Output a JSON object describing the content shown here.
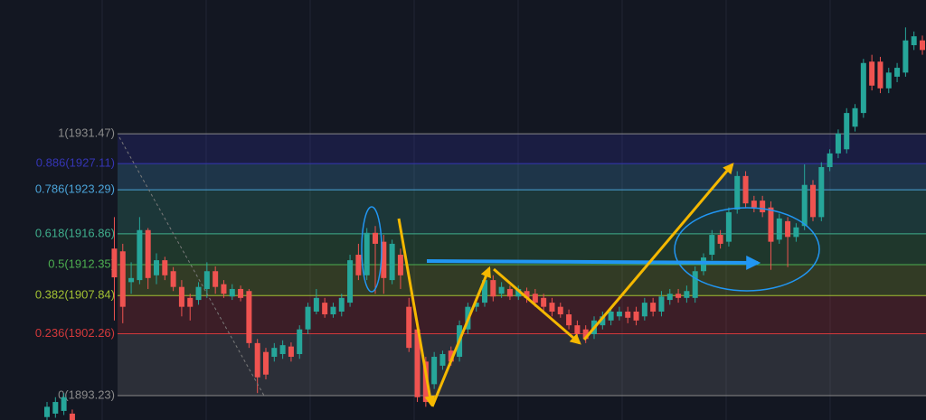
{
  "chart_data": {
    "type": "candlestick",
    "ylim": [
      1889.67,
      1951.0
    ],
    "up_color": "#26a69a",
    "down_color": "#ef5350",
    "fib_levels": [
      {
        "value": 1931.47,
        "label": "1(1931.47)"
      },
      {
        "value": 1927.11,
        "label": "0.886(1927.11)"
      },
      {
        "value": 1923.29,
        "label": "0.786(1923.29)"
      },
      {
        "value": 1916.86,
        "label": "0.618(1916.86)"
      },
      {
        "value": 1912.35,
        "label": "0.5(1912.35)"
      },
      {
        "value": 1907.84,
        "label": "0.382(1907.84)"
      },
      {
        "value": 1902.26,
        "label": "0.236(1902.26)"
      },
      {
        "value": 1893.23,
        "label": "0(1893.23)"
      }
    ],
    "fib_colors": [
      "#8a8a8a",
      "#3535b5",
      "#4aa3d8",
      "#3fae8c",
      "#4caf50",
      "#a2c132",
      "#d3393b",
      "#8a8a8a"
    ],
    "open": [
      1890.1,
      1890.6,
      1891.0,
      1890.6,
      1889.0,
      1887.5,
      1888.5,
      1888.0,
      1914.7,
      1914.3,
      1909.8,
      1910.1,
      1917.4,
      1910.8,
      1913.0,
      1911.4,
      1909.1,
      1907.5,
      1907.2,
      1908.8,
      1911.4,
      1909.5,
      1907.7,
      1908.8,
      1908.5,
      1900.9,
      1899.6,
      1898.9,
      1899.3,
      1900.4,
      1899.3,
      1902.9,
      1905.5,
      1906.8,
      1905.1,
      1905.5,
      1906.8,
      1913.8,
      1910.8,
      1917.0,
      1915.7,
      1910.1,
      1913.8,
      1906.2,
      1902.9,
      1898.2,
      1894.9,
      1897.6,
      1899.8,
      1898.9,
      1902.9,
      1906.2,
      1906.8,
      1910.1,
      1908.1,
      1908.8,
      1907.7,
      1908.5,
      1908.1,
      1907.5,
      1906.8,
      1906.2,
      1905.1,
      1903.5,
      1902.9,
      1902.2,
      1903.5,
      1904.2,
      1904.8,
      1905.5,
      1905.5,
      1904.8,
      1906.8,
      1905.5,
      1907.2,
      1908.1,
      1907.5,
      1907.5,
      1911.4,
      1913.8,
      1916.7,
      1915.7,
      1920.4,
      1925.3,
      1921.7,
      1921.7,
      1920.7,
      1916.0,
      1918.7,
      1916.4,
      1918.0,
      1924.0,
      1919.3,
      1926.6,
      1928.6,
      1929.2,
      1932.5,
      1934.5,
      1942.0,
      1942.0,
      1938.1,
      1939.8,
      1940.4,
      1944.4,
      1945.1
    ],
    "high": [
      1892.3,
      1893.0,
      1893.6,
      1891.2,
      1889.3,
      1889.0,
      1889.2,
      1889.5,
      1919.3,
      1915.4,
      1912.7,
      1919.3,
      1917.7,
      1914.0,
      1913.5,
      1912.0,
      1910.1,
      1908.1,
      1909.8,
      1912.7,
      1912.1,
      1910.1,
      1909.5,
      1909.3,
      1908.8,
      1901.5,
      1900.2,
      1900.9,
      1901.3,
      1901.0,
      1903.5,
      1906.8,
      1908.8,
      1907.5,
      1906.8,
      1908.1,
      1913.8,
      1915.4,
      1917.7,
      1918.0,
      1916.7,
      1916.0,
      1914.7,
      1907.5,
      1903.5,
      1898.9,
      1899.6,
      1899.8,
      1900.4,
      1904.2,
      1906.8,
      1907.5,
      1910.8,
      1910.8,
      1909.8,
      1909.3,
      1909.3,
      1909.0,
      1908.8,
      1908.1,
      1907.5,
      1906.8,
      1905.8,
      1904.2,
      1903.5,
      1904.8,
      1905.5,
      1906.2,
      1906.2,
      1906.2,
      1906.2,
      1907.5,
      1907.5,
      1908.5,
      1908.8,
      1908.8,
      1909.3,
      1912.1,
      1914.0,
      1917.4,
      1917.4,
      1920.7,
      1926.0,
      1926.0,
      1922.4,
      1922.4,
      1921.6,
      1919.8,
      1919.3,
      1918.4,
      1927.0,
      1924.7,
      1927.3,
      1929.2,
      1932.1,
      1935.2,
      1935.8,
      1942.4,
      1943.0,
      1942.7,
      1941.1,
      1941.8,
      1947.0,
      1946.4,
      1945.8
    ],
    "low": [
      1889.5,
      1890.0,
      1890.4,
      1888.5,
      1887.0,
      1887.0,
      1887.3,
      1887.6,
      1904.2,
      1903.8,
      1908.1,
      1909.5,
      1908.8,
      1909.5,
      1910.1,
      1908.5,
      1904.8,
      1904.2,
      1906.5,
      1907.5,
      1908.1,
      1907.5,
      1907.2,
      1907.0,
      1900.2,
      1893.6,
      1895.6,
      1898.2,
      1898.6,
      1898.2,
      1898.6,
      1902.2,
      1905.1,
      1904.6,
      1904.6,
      1904.8,
      1906.2,
      1910.1,
      1910.1,
      1908.1,
      1908.1,
      1909.5,
      1908.8,
      1899.6,
      1892.3,
      1891.6,
      1894.2,
      1897.0,
      1897.6,
      1898.2,
      1902.2,
      1905.5,
      1906.2,
      1907.0,
      1907.5,
      1907.2,
      1907.2,
      1906.8,
      1906.2,
      1905.5,
      1904.8,
      1904.6,
      1902.9,
      1901.5,
      1900.9,
      1901.5,
      1902.9,
      1903.5,
      1904.2,
      1903.8,
      1903.5,
      1904.2,
      1904.8,
      1904.8,
      1906.5,
      1906.8,
      1906.8,
      1906.8,
      1910.8,
      1913.0,
      1914.7,
      1915.0,
      1919.8,
      1920.7,
      1920.0,
      1919.3,
      1911.6,
      1915.4,
      1912.0,
      1915.7,
      1917.4,
      1918.7,
      1918.7,
      1926.0,
      1927.9,
      1928.6,
      1931.8,
      1933.8,
      1937.8,
      1937.4,
      1937.4,
      1939.0,
      1939.8,
      1943.7,
      1943.0
    ],
    "close": [
      1891.6,
      1892.3,
      1893.0,
      1889.0,
      1887.5,
      1888.5,
      1888.0,
      1889.3,
      1910.5,
      1906.2,
      1910.4,
      1917.4,
      1910.4,
      1913.0,
      1910.8,
      1909.1,
      1906.2,
      1906.2,
      1909.1,
      1911.4,
      1909.1,
      1908.1,
      1908.8,
      1907.5,
      1900.9,
      1895.9,
      1896.3,
      1900.2,
      1900.6,
      1898.9,
      1902.9,
      1906.2,
      1907.5,
      1905.1,
      1906.2,
      1907.5,
      1913.0,
      1910.8,
      1917.0,
      1915.4,
      1910.4,
      1915.4,
      1910.8,
      1900.2,
      1893.0,
      1892.3,
      1898.9,
      1899.3,
      1898.2,
      1903.5,
      1906.2,
      1906.8,
      1910.1,
      1907.7,
      1909.1,
      1907.7,
      1908.8,
      1907.5,
      1906.8,
      1906.2,
      1905.5,
      1905.1,
      1903.5,
      1902.2,
      1901.5,
      1904.2,
      1904.8,
      1905.5,
      1905.5,
      1904.6,
      1904.2,
      1906.8,
      1905.5,
      1907.7,
      1908.1,
      1907.5,
      1908.5,
      1911.4,
      1913.4,
      1916.7,
      1915.4,
      1920.0,
      1925.3,
      1921.3,
      1920.7,
      1920.0,
      1915.7,
      1919.1,
      1916.4,
      1917.8,
      1924.0,
      1919.3,
      1926.6,
      1928.6,
      1931.5,
      1934.5,
      1935.2,
      1941.8,
      1938.5,
      1938.1,
      1940.4,
      1941.1,
      1945.1,
      1945.7,
      1943.7
    ]
  }
}
